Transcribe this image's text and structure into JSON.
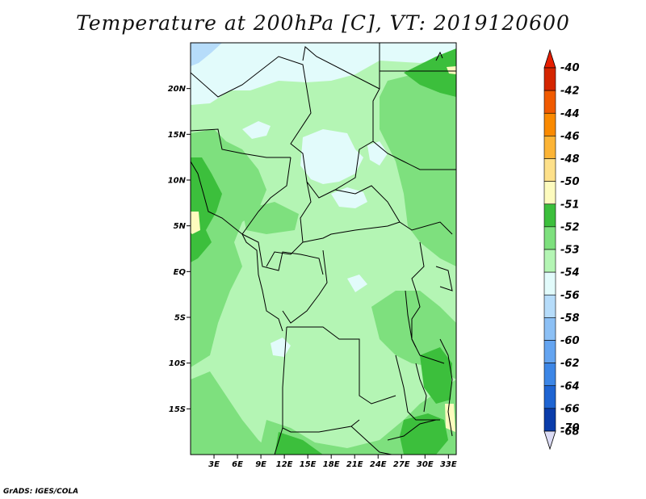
{
  "title": "Temperature at 200hPa [C], VT: 2019120600",
  "credit": "GrADS: IGES/COLA",
  "map": {
    "lon_range": [
      0,
      34
    ],
    "lat_range": [
      -20,
      25
    ],
    "lat_ticks": [
      {
        "value": 20,
        "label": "20N"
      },
      {
        "value": 15,
        "label": "15N"
      },
      {
        "value": 10,
        "label": "10N"
      },
      {
        "value": 5,
        "label": "5N"
      },
      {
        "value": 0,
        "label": "EQ"
      },
      {
        "value": -5,
        "label": "5S"
      },
      {
        "value": -10,
        "label": "10S"
      },
      {
        "value": -15,
        "label": "15S"
      }
    ],
    "lon_ticks": [
      {
        "value": 3,
        "label": "3E"
      },
      {
        "value": 6,
        "label": "6E"
      },
      {
        "value": 9,
        "label": "9E"
      },
      {
        "value": 12,
        "label": "12E"
      },
      {
        "value": 15,
        "label": "15E"
      },
      {
        "value": 18,
        "label": "18E"
      },
      {
        "value": 21,
        "label": "21E"
      },
      {
        "value": 24,
        "label": "24E"
      },
      {
        "value": 27,
        "label": "27E"
      },
      {
        "value": 30,
        "label": "30E"
      },
      {
        "value": 33,
        "label": "33E"
      }
    ]
  },
  "colorbar": {
    "levels": [
      {
        "label": "-40",
        "color": "#a00000"
      },
      {
        "label": "-42",
        "color": "#d42500"
      },
      {
        "label": "-44",
        "color": "#f05a00"
      },
      {
        "label": "-46",
        "color": "#fa8a00"
      },
      {
        "label": "-48",
        "color": "#fcb436"
      },
      {
        "label": "-50",
        "color": "#fde08a"
      },
      {
        "label": "-51",
        "color": "#fdfbbe"
      },
      {
        "label": "-52",
        "color": "#3cbf3c"
      },
      {
        "label": "-53",
        "color": "#7ee07e"
      },
      {
        "label": "-54",
        "color": "#b4f5b4"
      },
      {
        "label": "-56",
        "color": "#e2fbfb"
      },
      {
        "label": "-58",
        "color": "#b6dcfa"
      },
      {
        "label": "-60",
        "color": "#8cc0f5"
      },
      {
        "label": "-62",
        "color": "#64a4f0"
      },
      {
        "label": "-64",
        "color": "#3c86e6"
      },
      {
        "label": "-66",
        "color": "#1e64d2"
      },
      {
        "label": "-68",
        "color": "#0a3caa"
      },
      {
        "label": "-70",
        "color": "#001478"
      }
    ],
    "top_arrow_color": "#e61e00",
    "bottom_arrow_color": "#dcdcf5"
  }
}
